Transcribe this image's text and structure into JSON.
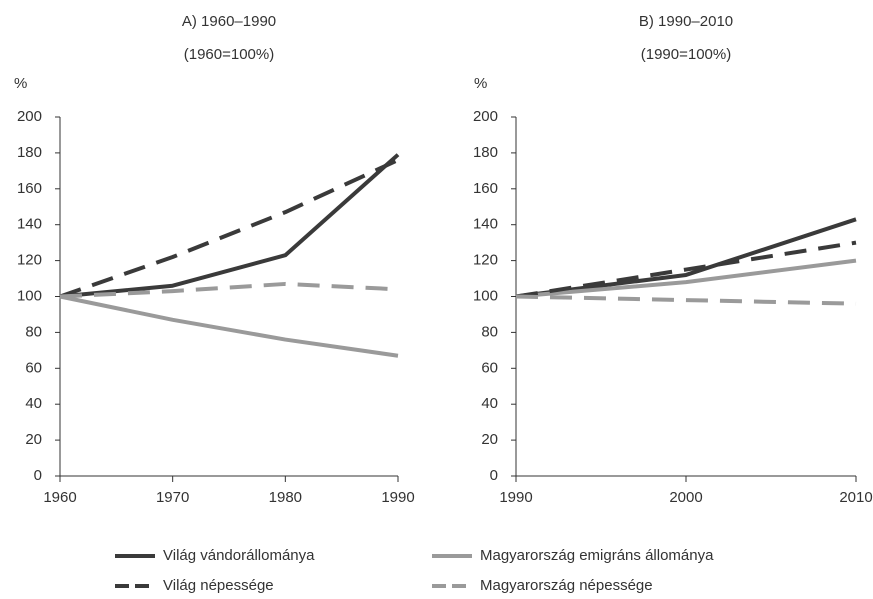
{
  "chart_data": [
    {
      "type": "line",
      "title": "A) 1960–1990",
      "subtitle": "(1960=100%)",
      "ylabel": "%",
      "x": [
        1960,
        1970,
        1980,
        1990
      ],
      "xlim": [
        1960,
        1990
      ],
      "xticks": [
        1960,
        1970,
        1980,
        1990
      ],
      "ylim": [
        0,
        200
      ],
      "yticks": [
        0,
        20,
        40,
        60,
        80,
        100,
        120,
        140,
        160,
        180,
        200
      ],
      "grid": false,
      "series": [
        {
          "name": "Világ vándorállománya",
          "color": "#3a3a3a",
          "dash": false,
          "values": [
            100,
            106,
            123,
            179
          ]
        },
        {
          "name": "Magyarország emigráns állománya",
          "color": "#9a9a9a",
          "dash": false,
          "values": [
            100,
            87,
            76,
            67
          ]
        },
        {
          "name": "Világ népessége",
          "color": "#3a3a3a",
          "dash": true,
          "values": [
            100,
            122,
            147,
            176
          ]
        },
        {
          "name": "Magyarország népessége",
          "color": "#9a9a9a",
          "dash": true,
          "values": [
            100,
            103,
            107,
            104
          ]
        }
      ]
    },
    {
      "type": "line",
      "title": "B) 1990–2010",
      "subtitle": "(1990=100%)",
      "ylabel": "%",
      "x": [
        1990,
        2000,
        2010
      ],
      "xlim": [
        1990,
        2010
      ],
      "xticks": [
        1990,
        2000,
        2010
      ],
      "ylim": [
        0,
        200
      ],
      "yticks": [
        0,
        20,
        40,
        60,
        80,
        100,
        120,
        140,
        160,
        180,
        200
      ],
      "grid": false,
      "series": [
        {
          "color": "#3a3a3a",
          "dash": false,
          "values": [
            100,
            112,
            143
          ]
        },
        {
          "color": "#9a9a9a",
          "dash": false,
          "values": [
            100,
            108,
            120
          ]
        },
        {
          "color": "#3a3a3a",
          "dash": true,
          "values": [
            100,
            115,
            130
          ]
        },
        {
          "color": "#9a9a9a",
          "dash": true,
          "values": [
            100,
            98,
            96
          ]
        }
      ]
    }
  ]
}
